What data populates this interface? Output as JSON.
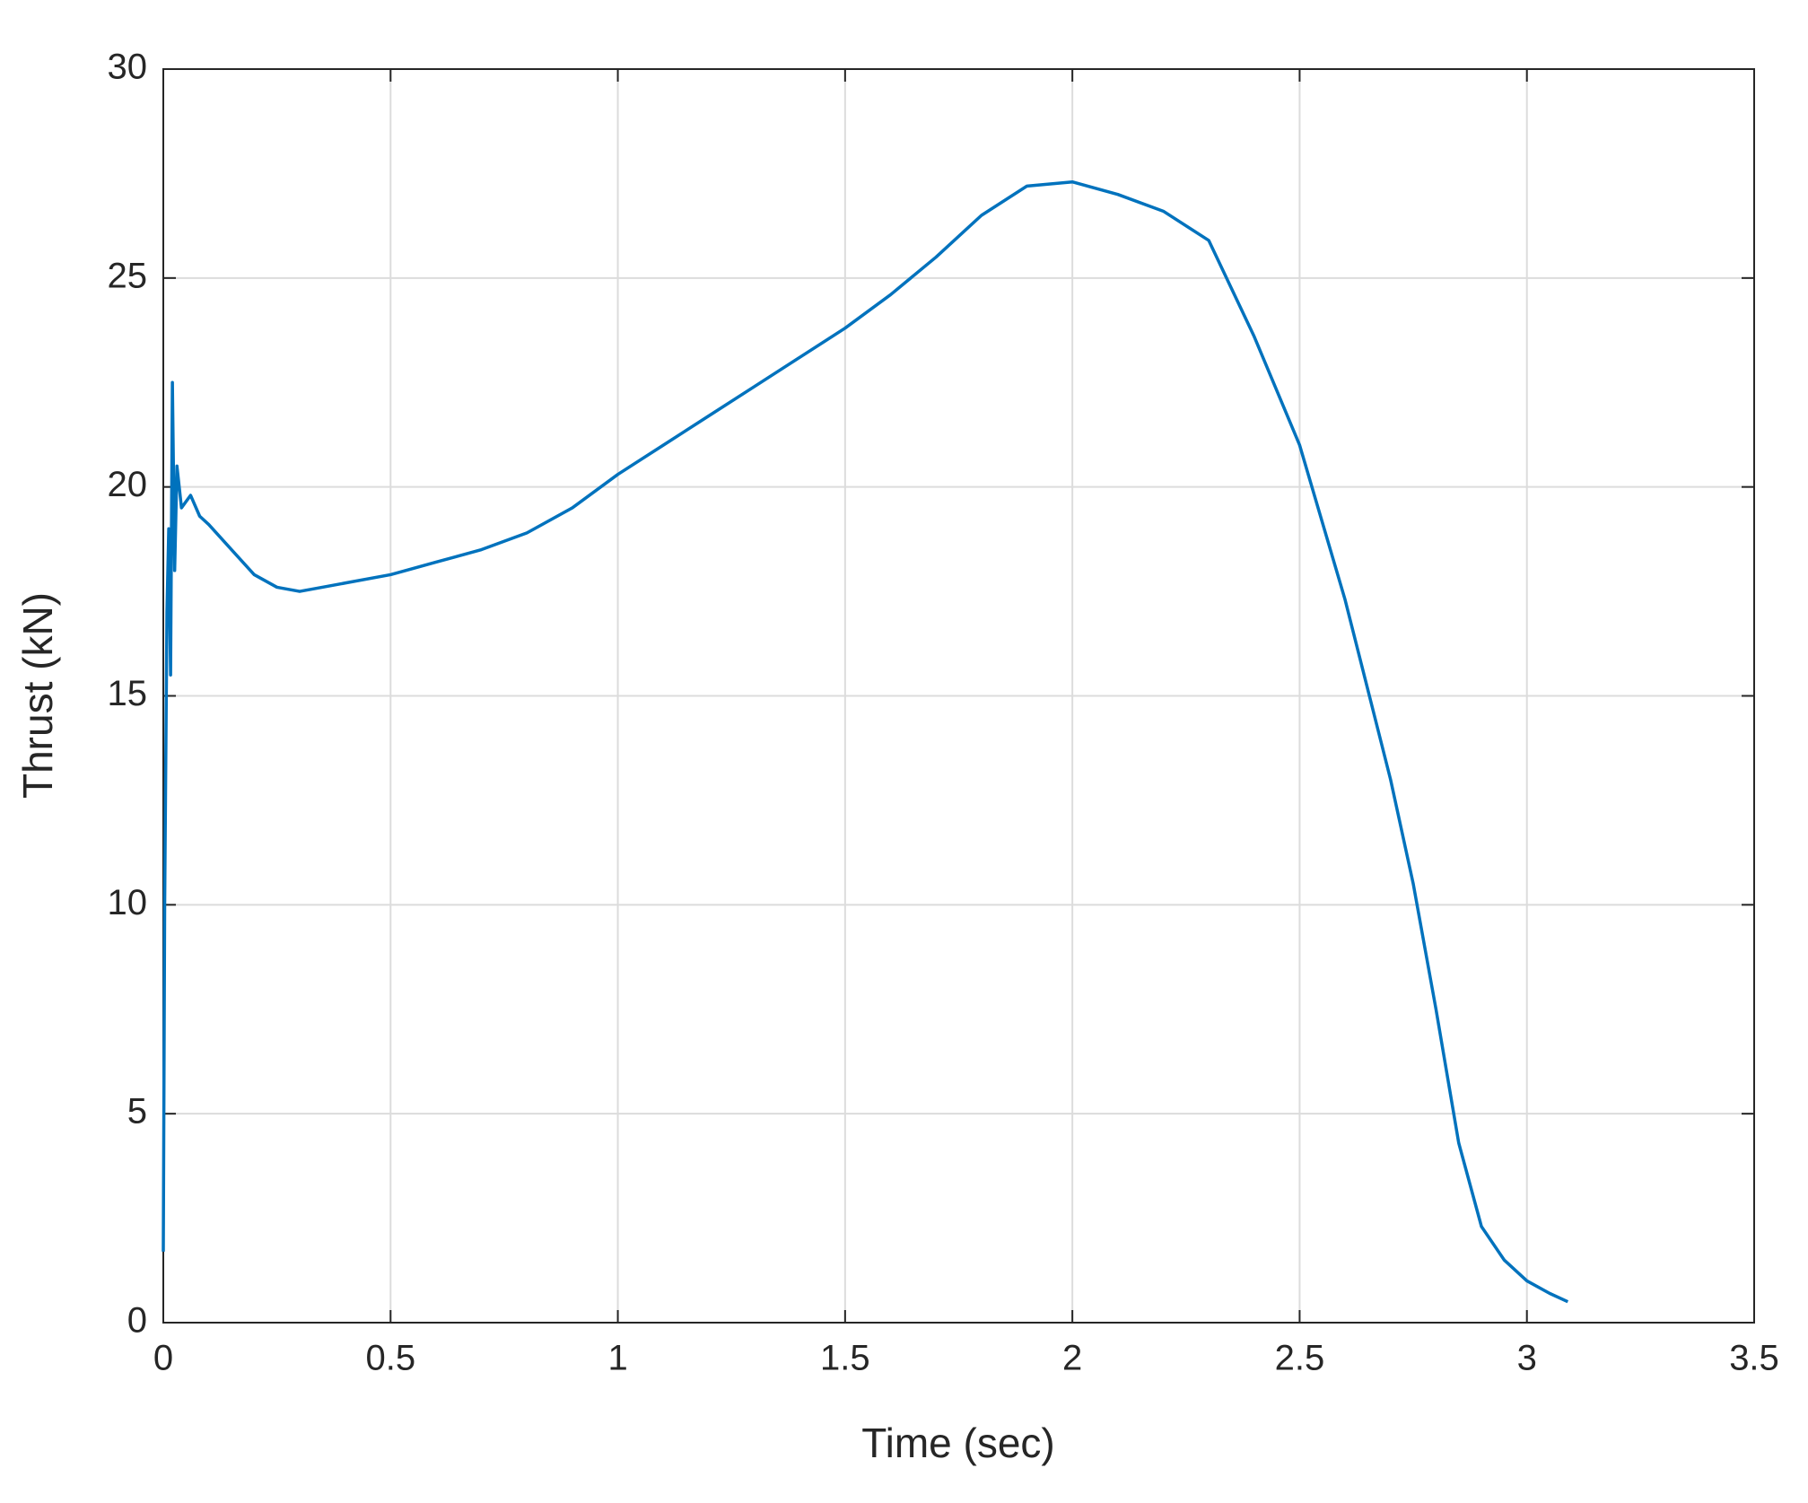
{
  "chart_data": {
    "type": "line",
    "xlabel": "Time (sec)",
    "ylabel": "Thrust (kN)",
    "x": [
      0,
      0.003,
      0.008,
      0.012,
      0.016,
      0.02,
      0.025,
      0.03,
      0.04,
      0.06,
      0.08,
      0.1,
      0.15,
      0.2,
      0.25,
      0.3,
      0.35,
      0.4,
      0.5,
      0.6,
      0.7,
      0.8,
      0.9,
      1.0,
      1.1,
      1.2,
      1.3,
      1.4,
      1.5,
      1.6,
      1.7,
      1.8,
      1.9,
      2.0,
      2.1,
      2.2,
      2.3,
      2.4,
      2.5,
      2.6,
      2.7,
      2.75,
      2.8,
      2.85,
      2.9,
      2.95,
      3.0,
      3.05,
      3.09
    ],
    "series": [
      {
        "color": "#0072bd",
        "values": [
          1.7,
          10,
          17,
          19,
          15.5,
          22.5,
          18,
          20.5,
          19.5,
          19.8,
          19.3,
          19.1,
          18.5,
          17.9,
          17.6,
          17.5,
          17.6,
          17.7,
          17.9,
          18.2,
          18.5,
          18.9,
          19.5,
          20.3,
          21.0,
          21.7,
          22.4,
          23.1,
          23.8,
          24.6,
          25.5,
          26.5,
          27.2,
          27.3,
          27.0,
          26.6,
          25.9,
          23.6,
          21.0,
          17.3,
          13.0,
          10.5,
          7.5,
          4.3,
          2.3,
          1.5,
          1.0,
          0.7,
          0.5
        ]
      }
    ],
    "xlim": [
      0,
      3.5
    ],
    "xticks": [
      0,
      0.5,
      1,
      1.5,
      2,
      2.5,
      3,
      3.5
    ],
    "ylim": [
      0,
      30
    ],
    "yticks": [
      0,
      5,
      10,
      15,
      20,
      25,
      30
    ],
    "grid": true
  }
}
